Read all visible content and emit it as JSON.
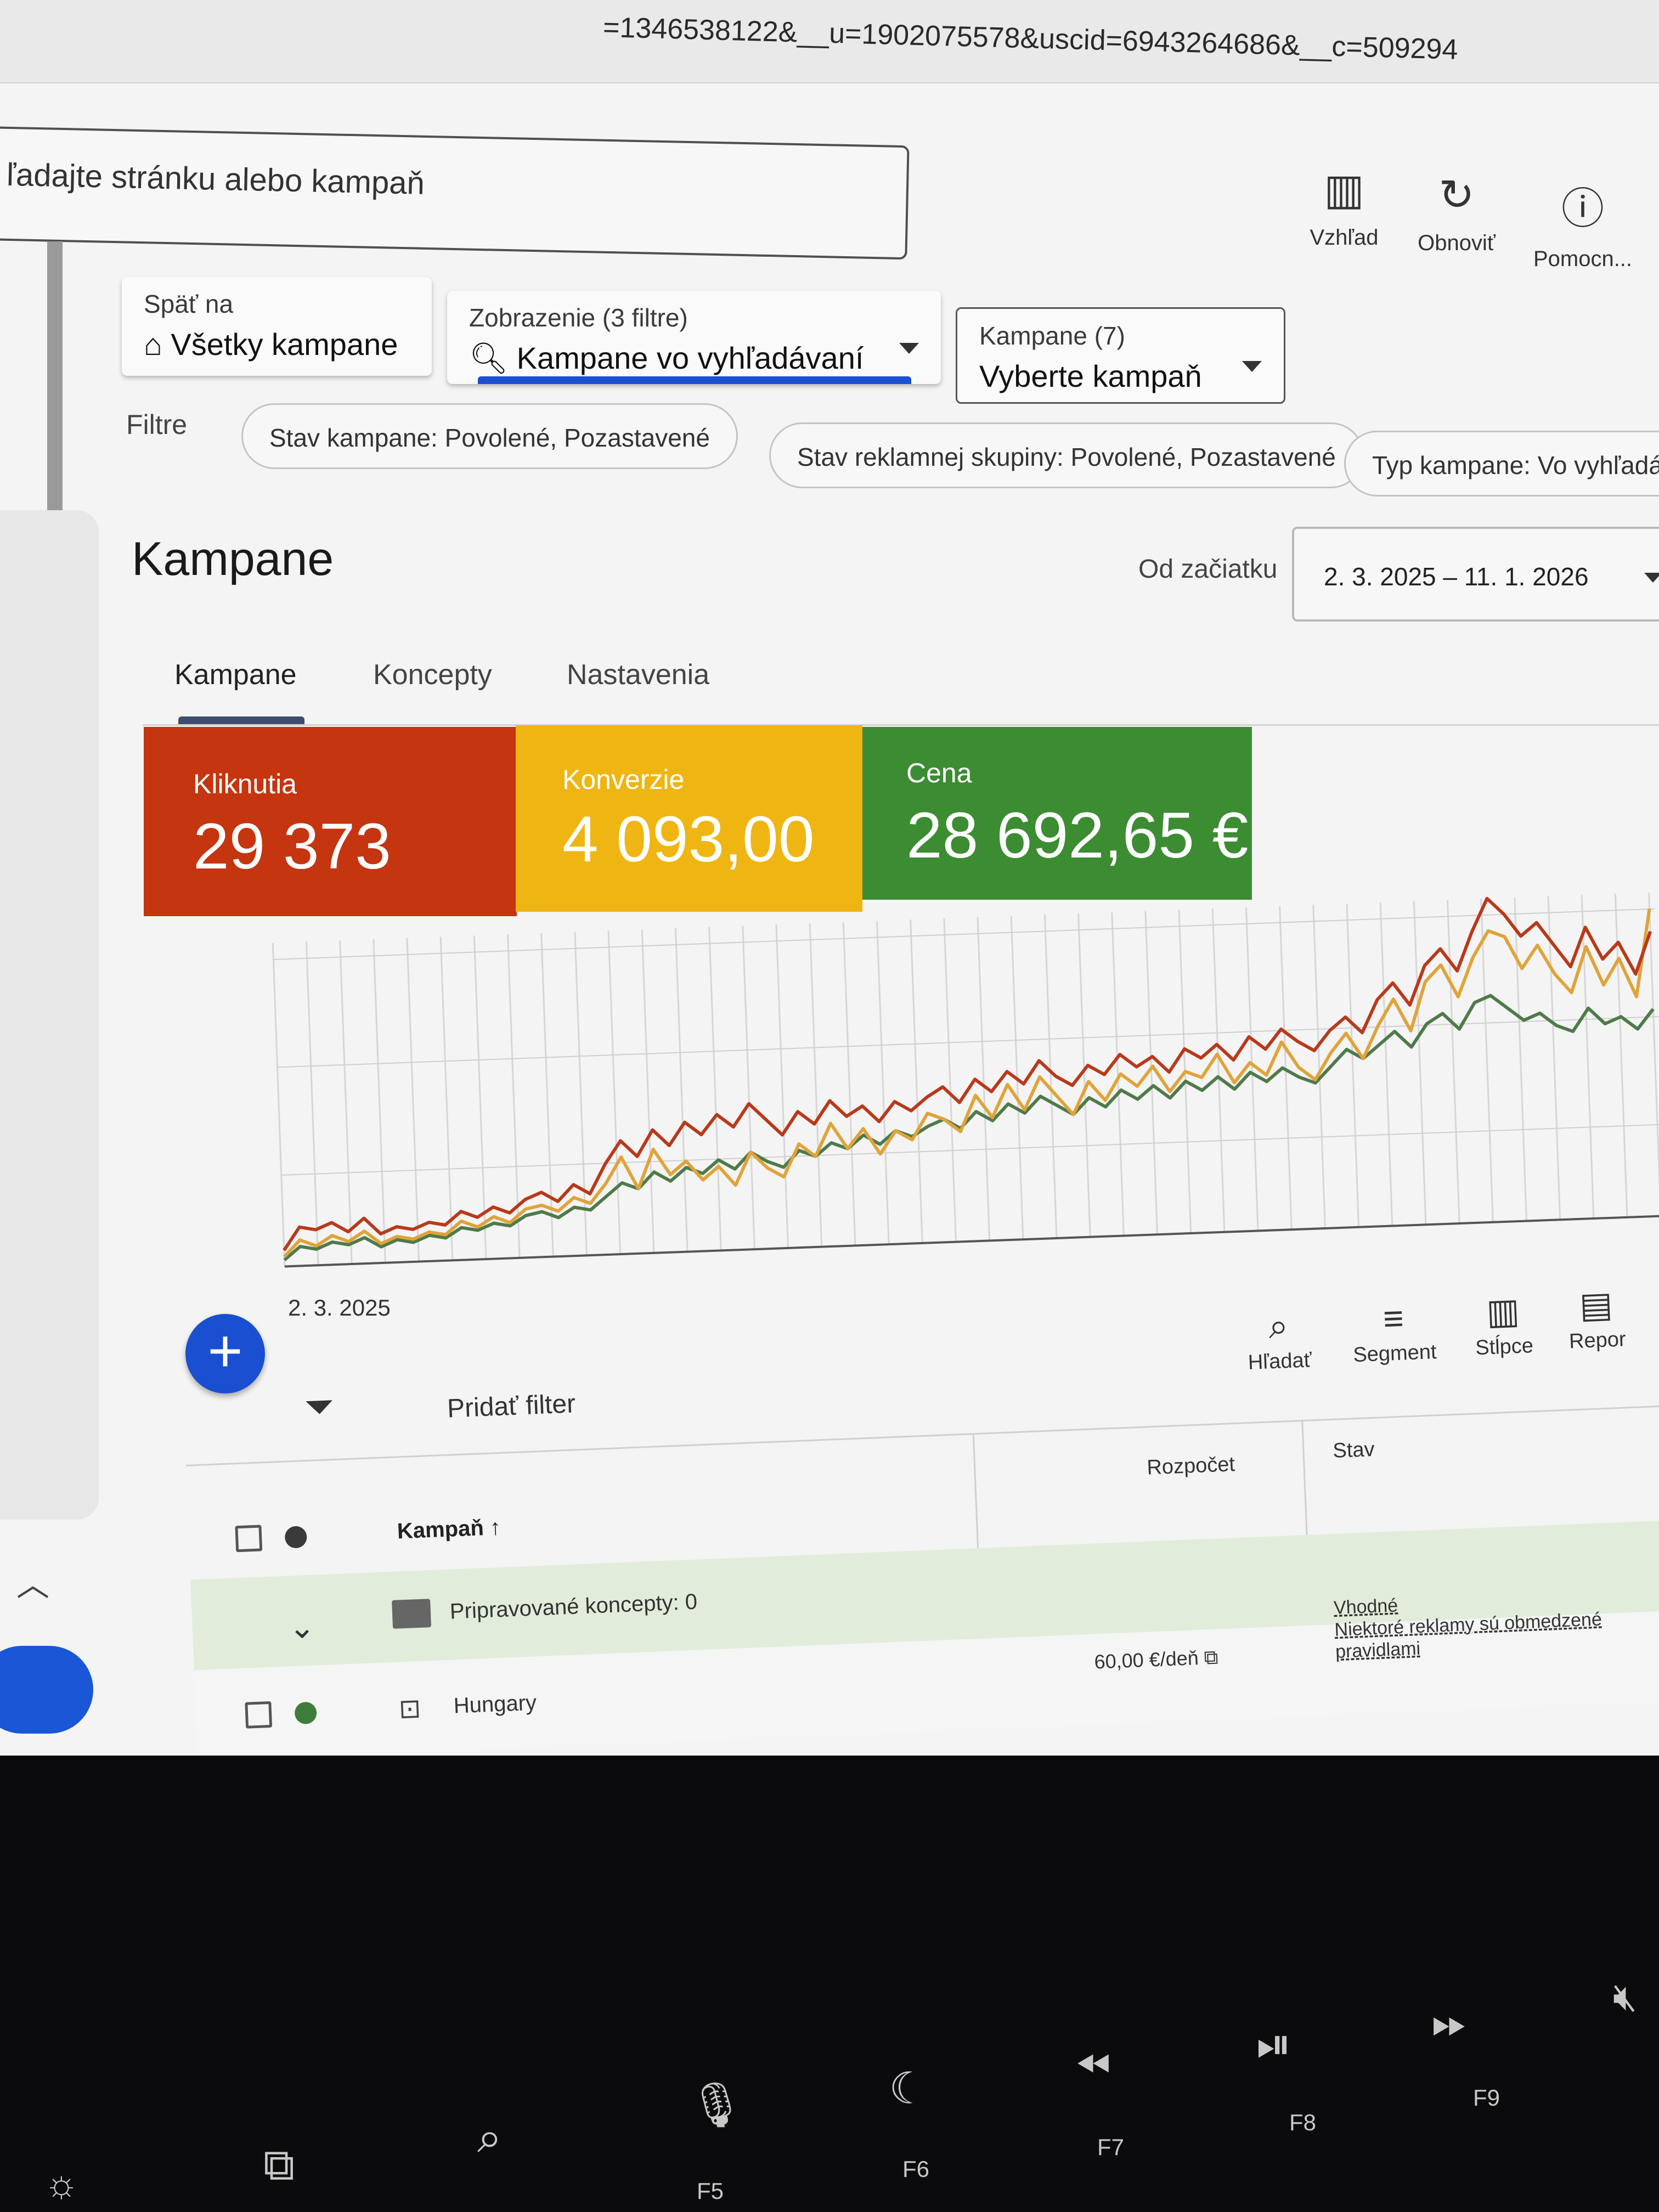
{
  "browser": {
    "url_fragment": "=1346538122&__u=1902075578&uscid=6943264686&__c=509294"
  },
  "search": {
    "placeholder": "ľadajte stránku alebo kampaň"
  },
  "toolbar": {
    "view_label": "Vzhľad",
    "refresh_label": "Obnoviť",
    "help_label": "Pomocn..."
  },
  "back": {
    "label": "Späť na",
    "value": "Všetky kampane"
  },
  "view_selector": {
    "label": "Zobrazenie (3 filtre)",
    "value": "Kampane vo vyhľadávaní"
  },
  "campaign_selector": {
    "label": "Kampane (7)",
    "value": "Vyberte kampaň"
  },
  "filters": {
    "label": "Filtre",
    "chips": [
      "Stav kampane: Povolené, Pozastavené",
      "Stav reklamnej skupiny: Povolené, Pozastavené",
      "Typ kampane: Vo vyhľadávaní"
    ]
  },
  "page": {
    "title": "Kampane",
    "range_label": "Od začiatku",
    "date_range": "2. 3. 2025 – 11. 1. 2026"
  },
  "tabs": [
    "Kampane",
    "Koncepty",
    "Nastavenia"
  ],
  "metrics": [
    {
      "label": "Kliknutia",
      "value": "29 373",
      "color": "#c5350f"
    },
    {
      "label": "Konverzie",
      "value": "4 093,00",
      "color": "#efb512"
    },
    {
      "label": "Cena",
      "value": "28 692,65 €",
      "color": "#3c8c32"
    }
  ],
  "chart_data": {
    "type": "line",
    "x_start_label": "2. 3. 2025",
    "series_colors": [
      "#b9391b",
      "#e0a33a",
      "#4f7a4a"
    ],
    "series": [
      {
        "values": [
          5,
          12,
          11,
          13,
          10,
          14,
          9,
          11,
          10,
          12,
          11,
          15,
          13,
          16,
          14,
          18,
          20,
          17,
          22,
          19,
          28,
          35,
          30,
          38,
          33,
          40,
          36,
          42,
          38,
          45,
          40,
          35,
          42,
          38,
          45,
          40,
          43,
          38,
          44,
          41,
          45,
          48,
          43,
          50,
          46,
          52,
          48,
          55,
          50,
          47,
          53,
          50,
          56,
          52,
          55,
          50,
          57,
          54,
          58,
          53,
          60,
          56,
          62,
          58,
          55,
          61,
          65,
          60,
          70,
          75,
          68,
          80,
          85,
          78,
          90,
          100,
          95,
          88,
          92,
          85,
          78,
          90,
          80,
          85,
          75,
          88
        ]
      },
      {
        "values": [
          3,
          8,
          6,
          9,
          7,
          10,
          6,
          8,
          7,
          9,
          8,
          12,
          10,
          13,
          11,
          15,
          16,
          14,
          18,
          16,
          22,
          30,
          20,
          32,
          24,
          28,
          22,
          26,
          20,
          30,
          25,
          22,
          32,
          28,
          38,
          30,
          36,
          28,
          35,
          32,
          40,
          38,
          34,
          45,
          38,
          48,
          40,
          50,
          44,
          38,
          48,
          42,
          50,
          46,
          52,
          44,
          50,
          48,
          55,
          46,
          52,
          48,
          58,
          50,
          46,
          54,
          60,
          52,
          62,
          70,
          60,
          75,
          80,
          70,
          82,
          90,
          88,
          78,
          85,
          76,
          70,
          84,
          72,
          80,
          68,
          95
        ]
      },
      {
        "values": [
          2,
          6,
          5,
          7,
          6,
          8,
          5,
          7,
          6,
          8,
          7,
          10,
          9,
          11,
          10,
          13,
          14,
          12,
          15,
          14,
          18,
          22,
          20,
          25,
          22,
          26,
          24,
          28,
          25,
          30,
          27,
          25,
          30,
          28,
          32,
          30,
          34,
          31,
          35,
          33,
          36,
          38,
          35,
          40,
          37,
          42,
          39,
          44,
          41,
          38,
          43,
          40,
          45,
          42,
          46,
          42,
          47,
          44,
          48,
          44,
          49,
          46,
          50,
          47,
          45,
          50,
          55,
          52,
          56,
          60,
          55,
          62,
          65,
          60,
          68,
          70,
          66,
          62,
          64,
          60,
          58,
          65,
          60,
          62,
          58,
          64
        ]
      }
    ]
  },
  "table_toolbar": {
    "filter_label": "Pridať filter",
    "search": "Hľadať",
    "segment": "Segment",
    "columns": "Stĺpce",
    "reports": "Repor"
  },
  "table": {
    "headers": {
      "campaign": "Kampaň",
      "budget": "Rozpočet",
      "status": "Stav"
    },
    "group_row": {
      "label": "Pripravované koncepty: 0"
    },
    "row": {
      "name": "Hungary",
      "budget": "60,00 €/deň",
      "status": "Vhodné",
      "status_note": "Niektoré reklamy sú obmedzené pravidlami"
    }
  },
  "keyboard": {
    "keys": [
      "F5",
      "F6",
      "F7",
      "F8",
      "F9"
    ]
  }
}
